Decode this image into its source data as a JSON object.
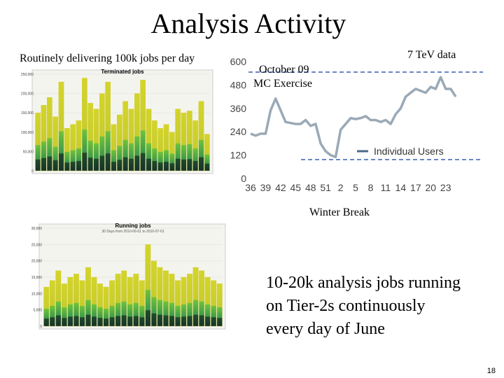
{
  "slide": {
    "title": "Analysis Activity",
    "subtitle": "Routinely delivering 100k jobs per day",
    "annotation_october": [
      "October 09",
      "MC Exercise"
    ],
    "annotation_tev": "7 TeV data",
    "annotation_winter": "Winter Break",
    "body_text": [
      "10-20k analysis jobs running",
      "on Tier-2s continuously",
      "every day of June"
    ],
    "page_number": "18"
  },
  "chart_data": [
    {
      "type": "line",
      "categories": [
        "36",
        null,
        null,
        "39",
        null,
        null,
        "42",
        null,
        null,
        "45",
        null,
        null,
        "48",
        null,
        null,
        "51",
        null,
        null,
        "2",
        null,
        null,
        "5",
        null,
        null,
        "8",
        null,
        null,
        "11",
        null,
        null,
        "14",
        null,
        null,
        "17",
        null,
        null,
        "20",
        null,
        null,
        "23",
        null,
        null
      ],
      "series": [
        {
          "name": "Individual Users",
          "color": "#9aa9b6",
          "values": [
            230,
            220,
            230,
            230,
            350,
            410,
            350,
            290,
            285,
            280,
            280,
            300,
            270,
            280,
            180,
            140,
            120,
            110,
            250,
            280,
            310,
            305,
            310,
            320,
            300,
            300,
            290,
            300,
            280,
            330,
            360,
            420,
            440,
            460,
            450,
            440,
            470,
            460,
            520,
            460,
            460,
            420
          ]
        }
      ],
      "ylim": [
        0,
        600
      ],
      "yticks": [
        0,
        120,
        240,
        360,
        480,
        600
      ],
      "legend": "lower-right"
    },
    {
      "type": "bar",
      "title": "Terminated jobs",
      "color": "#c9cc2c",
      "values": [
        150000,
        170000,
        190000,
        140000,
        230000,
        110000,
        120000,
        130000,
        240000,
        175000,
        160000,
        200000,
        230000,
        120000,
        145000,
        180000,
        160000,
        200000,
        235000,
        160000,
        130000,
        110000,
        120000,
        100000,
        160000,
        150000,
        155000,
        130000,
        180000,
        95000
      ],
      "ylim": [
        0,
        250000
      ],
      "yticks": [
        0,
        {
          "value": 50000,
          "label": "50,000"
        },
        {
          "value": 100000,
          "label": "100,000"
        },
        {
          "value": 150000,
          "label": "150,000"
        },
        {
          "value": 200000,
          "label": "200,000"
        },
        {
          "value": 250000,
          "label": "250,000"
        }
      ]
    },
    {
      "type": "bar",
      "title": "Running jobs",
      "subtitle": "30 Days from 2010-06-01 to 2010-07-01",
      "color": "#c9cc2c",
      "values": [
        12000,
        14000,
        17000,
        13000,
        15000,
        16000,
        14000,
        18000,
        15000,
        13000,
        12000,
        14000,
        16000,
        17000,
        15000,
        16000,
        14000,
        25000,
        20000,
        18000,
        17000,
        16000,
        14000,
        15000,
        16000,
        18000,
        17000,
        15000,
        14000,
        13000
      ],
      "ylim": [
        0,
        30000
      ],
      "yticks": [
        0,
        {
          "value": 5000,
          "label": "5,000"
        },
        {
          "value": 10000,
          "label": "10,000"
        },
        {
          "value": 15000,
          "label": "15,000"
        },
        {
          "value": 20000,
          "label": "20,000"
        },
        {
          "value": 25000,
          "label": "25,000"
        },
        {
          "value": 30000,
          "label": "30,000"
        }
      ]
    }
  ]
}
